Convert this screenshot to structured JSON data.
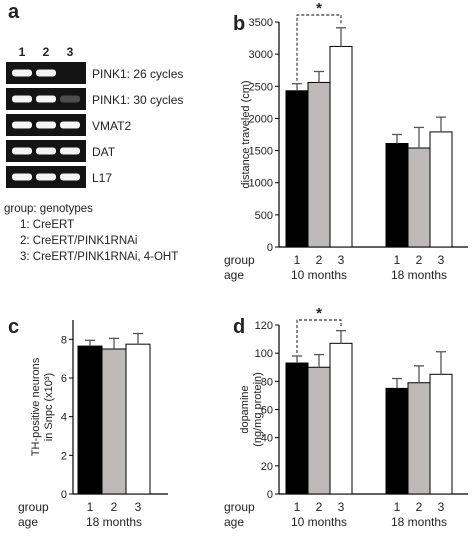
{
  "panel_a": {
    "label": "a",
    "lane_numbers": [
      "1",
      "2",
      "3"
    ],
    "bands": [
      {
        "label": "PINK1: 26 cycles",
        "intensity": [
          1,
          1,
          0
        ]
      },
      {
        "label": "PINK1: 30 cycles",
        "intensity": [
          1,
          1,
          0.25
        ]
      },
      {
        "label": "VMAT2",
        "intensity": [
          1,
          1,
          1
        ]
      },
      {
        "label": "DAT",
        "intensity": [
          1,
          1,
          1
        ]
      },
      {
        "label": "L17",
        "intensity": [
          1,
          1,
          1
        ]
      }
    ],
    "legend": {
      "title": "group: genotypes",
      "items": [
        "1: CreERT",
        "2: CreERT/PINK1RNAi",
        "3: CreERT/PINK1RNAi, 4-OHT"
      ]
    }
  },
  "colors": {
    "group1": "#000000",
    "group2": "#bebaba",
    "group3": "#ffffff"
  },
  "chart_data": [
    {
      "panel": "b",
      "type": "bar",
      "ylabel": "distance traveled (cm)",
      "ylim": [
        0,
        3500
      ],
      "yticks": [
        "0",
        "500",
        "1000",
        "1500",
        "2000",
        "2500",
        "3000",
        "3500"
      ],
      "row_labels": [
        "group",
        "age"
      ],
      "clusters": [
        {
          "age": "10 months",
          "groups": [
            "1",
            "2",
            "3"
          ],
          "values": [
            2430,
            2560,
            3120
          ],
          "errors": [
            110,
            170,
            290
          ]
        },
        {
          "age": "18 months",
          "groups": [
            "1",
            "2",
            "3"
          ],
          "values": [
            1610,
            1540,
            1790
          ],
          "errors": [
            140,
            320,
            230
          ]
        }
      ],
      "significance": {
        "from": [
          0,
          0
        ],
        "to": [
          0,
          2
        ],
        "label": "*"
      }
    },
    {
      "panel": "c",
      "type": "bar",
      "ylabel_lines": [
        "TH-positive neurons",
        "in Snpc (x10³)"
      ],
      "ylim": [
        0,
        9
      ],
      "yticks": [
        "0",
        "2",
        "4",
        "6",
        "8"
      ],
      "row_labels": [
        "group",
        "age"
      ],
      "clusters": [
        {
          "age": "18 months",
          "groups": [
            "1",
            "2",
            "3"
          ],
          "values": [
            7.65,
            7.5,
            7.75
          ],
          "errors": [
            0.3,
            0.55,
            0.55
          ]
        }
      ]
    },
    {
      "panel": "d",
      "type": "bar",
      "ylabel_lines": [
        "dopamine",
        "(ng/mg protein)"
      ],
      "ylim": [
        0,
        120
      ],
      "yticks": [
        "0",
        "20",
        "40",
        "60",
        "80",
        "100",
        "120"
      ],
      "row_labels": [
        "group",
        "age"
      ],
      "clusters": [
        {
          "age": "10 months",
          "groups": [
            "1",
            "2",
            "3"
          ],
          "values": [
            93,
            90,
            107
          ],
          "errors": [
            5,
            9,
            9
          ]
        },
        {
          "age": "18 months",
          "groups": [
            "1",
            "2",
            "3"
          ],
          "values": [
            75,
            79,
            85
          ],
          "errors": [
            7,
            12,
            16
          ]
        }
      ],
      "significance": {
        "from": [
          0,
          0
        ],
        "to": [
          0,
          2
        ],
        "label": "*"
      }
    }
  ]
}
